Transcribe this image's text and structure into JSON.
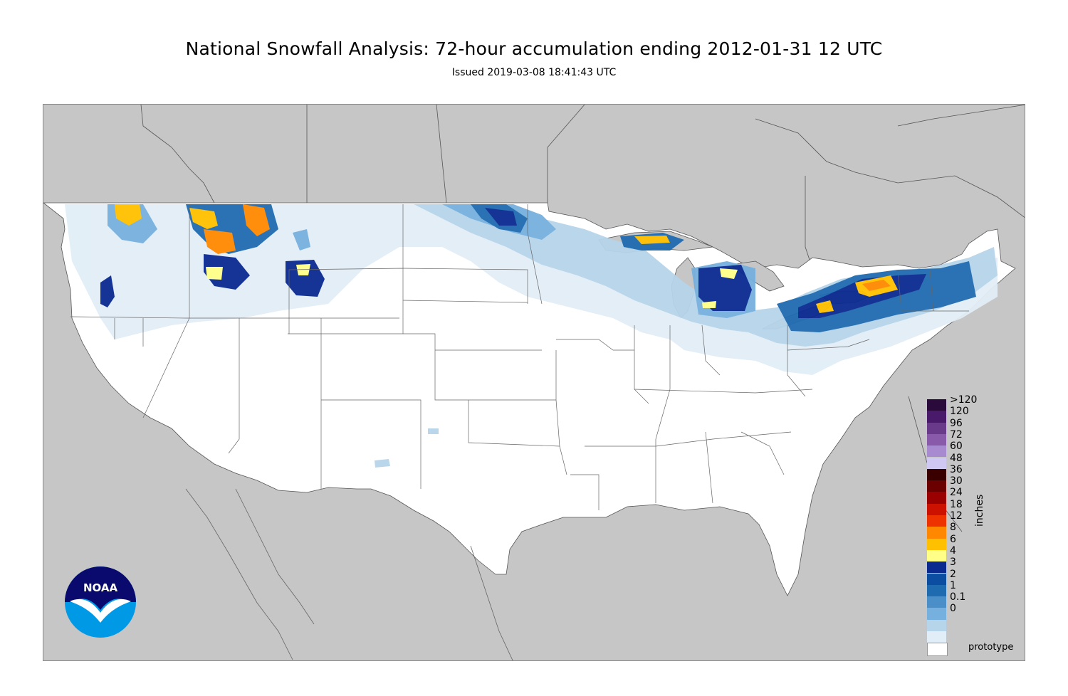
{
  "title": "National Snowfall Analysis: 72-hour accumulation ending 2012-01-31 12 UTC",
  "subtitle": "Issued 2019-03-08 18:41:43 UTC",
  "legend": {
    "unit": "inches",
    "entries": [
      {
        "label": ">120",
        "color": "#2a0a3a"
      },
      {
        "label": "120",
        "color": "#4a1a6a"
      },
      {
        "label": "96",
        "color": "#6a3a8a"
      },
      {
        "label": "72",
        "color": "#8a5aaa"
      },
      {
        "label": "60",
        "color": "#a88ad0"
      },
      {
        "label": "48",
        "color": "#cfc8f3"
      },
      {
        "label": "36",
        "color": "#3a0000"
      },
      {
        "label": "30",
        "color": "#6a0000"
      },
      {
        "label": "24",
        "color": "#9a0000"
      },
      {
        "label": "18",
        "color": "#cc1100"
      },
      {
        "label": "12",
        "color": "#ee3300"
      },
      {
        "label": "8",
        "color": "#ff8800"
      },
      {
        "label": "6",
        "color": "#ffc000"
      },
      {
        "label": "4",
        "color": "#ffff88"
      },
      {
        "label": "3",
        "color": "#0a2a90"
      },
      {
        "label": "2",
        "color": "#0b4da0"
      },
      {
        "label": "1",
        "color": "#1f6bb0"
      },
      {
        "label": "0.1",
        "color": "#4a8fc8"
      },
      {
        "label": "0",
        "color": "#76b0de"
      },
      {
        "label": "",
        "color": "#b6d4ea"
      },
      {
        "label": "",
        "color": "#e2eef7"
      },
      {
        "label": "",
        "color": "#ffffff"
      }
    ]
  },
  "footer_label": "prototype",
  "logo_text": "NOAA",
  "colors": {
    "background": "#c6c6c6",
    "land": "#ffffff",
    "snow_light": "#e2eef7",
    "snow_low": "#b6d4ea",
    "snow_mid": "#76b0de",
    "snow_blue": "#4a8fc8",
    "snow_deep": "#1f6bb0",
    "snow_navy": "#0a2a90",
    "snow_yellow": "#ffff88",
    "snow_gold": "#ffc000",
    "snow_orange": "#ff8800",
    "snow_red": "#ee3300"
  }
}
